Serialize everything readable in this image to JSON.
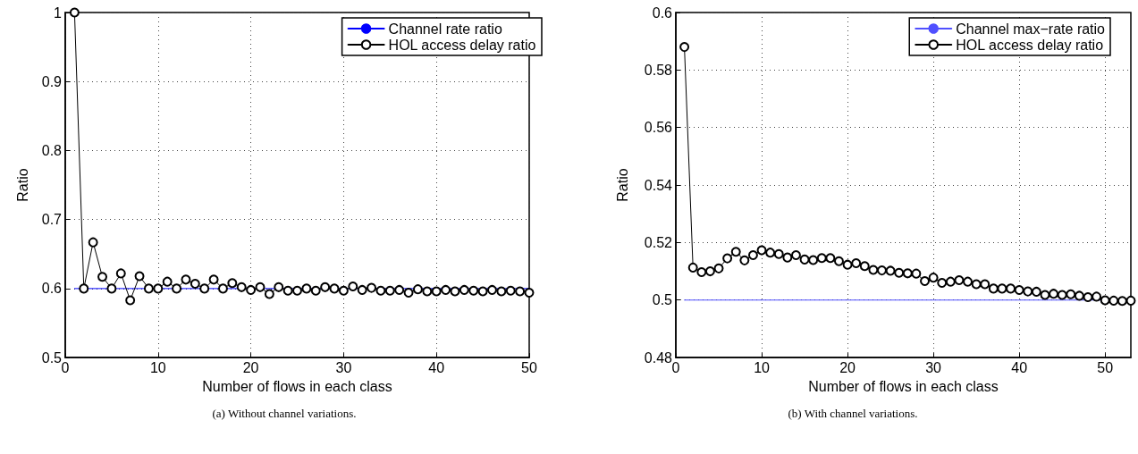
{
  "chart_data": [
    {
      "type": "line",
      "xlabel": "Number of flows in each class",
      "ylabel": "Ratio",
      "annotations": [
        "(a)  Without channel variations."
      ],
      "xlim": [
        0,
        50
      ],
      "xticks": [
        0,
        10,
        20,
        30,
        40,
        50
      ],
      "ylim": [
        0.5,
        1
      ],
      "yticks": [
        0.5,
        0.6,
        0.7,
        0.8,
        0.9,
        1
      ],
      "grid": true,
      "legend": "top right",
      "series": [
        {
          "name": "Channel rate ratio",
          "color": "#0000ff",
          "marker": "none",
          "x": [
            1,
            50
          ],
          "values": [
            0.6,
            0.6
          ]
        },
        {
          "name": "HOL access delay ratio",
          "color": "#000000",
          "marker": "circle",
          "x": [
            1,
            2,
            3,
            4,
            5,
            6,
            7,
            8,
            9,
            10,
            11,
            12,
            13,
            14,
            15,
            16,
            17,
            18,
            19,
            20,
            21,
            22,
            23,
            24,
            25,
            26,
            27,
            28,
            29,
            30,
            31,
            32,
            33,
            34,
            35,
            36,
            37,
            38,
            39,
            40,
            41,
            42,
            43,
            44,
            45,
            46,
            47,
            48,
            49,
            50
          ],
          "values": [
            1,
            0.6,
            0.667,
            0.617,
            0.6,
            0.622,
            0.583,
            0.618,
            0.6,
            0.6,
            0.61,
            0.6,
            0.613,
            0.607,
            0.6,
            0.613,
            0.6,
            0.608,
            0.602,
            0.598,
            0.602,
            0.592,
            0.602,
            0.597,
            0.597,
            0.6,
            0.597,
            0.602,
            0.6,
            0.597,
            0.603,
            0.598,
            0.601,
            0.597,
            0.597,
            0.598,
            0.594,
            0.599,
            0.596,
            0.596,
            0.598,
            0.596,
            0.598,
            0.597,
            0.596,
            0.598,
            0.596,
            0.597,
            0.596,
            0.594
          ]
        }
      ]
    },
    {
      "type": "line",
      "xlabel": "Number of flows in each class",
      "ylabel": "Ratio",
      "annotations": [
        "(b)  With channel variations."
      ],
      "xlim": [
        0,
        53
      ],
      "xticks": [
        0,
        10,
        20,
        30,
        40,
        50
      ],
      "ylim": [
        0.48,
        0.6
      ],
      "yticks": [
        0.48,
        0.5,
        0.52,
        0.54,
        0.56,
        0.58,
        0.6
      ],
      "grid": true,
      "legend": "top right",
      "series": [
        {
          "name": "Channel max−rate ratio",
          "color": "#5050ff",
          "marker": "none",
          "x": [
            1,
            53
          ],
          "values": [
            0.5,
            0.5
          ]
        },
        {
          "name": "HOL access delay ratio",
          "color": "#000000",
          "marker": "circle",
          "x": [
            1,
            2,
            3,
            4,
            5,
            6,
            7,
            8,
            9,
            10,
            11,
            12,
            13,
            14,
            15,
            16,
            17,
            18,
            19,
            20,
            21,
            22,
            23,
            24,
            25,
            26,
            27,
            28,
            29,
            30,
            31,
            32,
            33,
            34,
            35,
            36,
            37,
            38,
            39,
            40,
            41,
            42,
            43,
            44,
            45,
            46,
            47,
            48,
            49,
            50,
            51,
            52,
            53
          ],
          "values": [
            0.588,
            0.5113,
            0.5097,
            0.51,
            0.511,
            0.5145,
            0.5168,
            0.5138,
            0.5156,
            0.5173,
            0.5165,
            0.516,
            0.5148,
            0.5156,
            0.5141,
            0.5139,
            0.5146,
            0.5146,
            0.5135,
            0.5123,
            0.5128,
            0.5118,
            0.5105,
            0.5103,
            0.5102,
            0.5095,
            0.5093,
            0.5092,
            0.5066,
            0.5078,
            0.506,
            0.5064,
            0.5069,
            0.5064,
            0.5055,
            0.5055,
            0.504,
            0.504,
            0.504,
            0.5035,
            0.503,
            0.5029,
            0.5018,
            0.5022,
            0.5018,
            0.502,
            0.5015,
            0.501,
            0.5012,
            0.4999,
            0.4998,
            0.4997,
            0.4998
          ]
        }
      ]
    }
  ]
}
